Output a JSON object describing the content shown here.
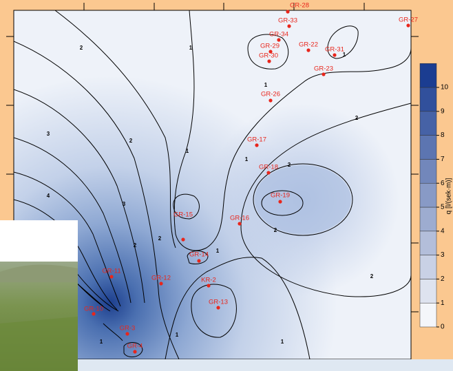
{
  "map": {
    "wells": [
      "GR-28",
      "GR-33",
      "GR-34",
      "GR-29",
      "GR-30",
      "GR-22",
      "GR-31",
      "GR-27",
      "GR-23",
      "GR-26",
      "GR-17",
      "GR-18",
      "GR-19",
      "GR-15",
      "GR-16",
      "GR-14",
      "GR-11",
      "GR-12",
      "KR-2",
      "GR-13",
      "GR-3",
      "GR-4",
      "GR-10"
    ],
    "contour_labels": [
      2,
      1,
      1,
      2,
      1,
      2,
      3,
      2,
      1,
      4,
      3,
      2,
      1,
      2,
      1,
      2,
      2,
      1,
      1,
      1
    ],
    "colorbar": {
      "ticks": [
        0,
        1,
        2,
        3,
        4,
        5,
        6,
        7,
        8,
        9,
        10
      ],
      "label": "q [l/(sek·m)]"
    }
  }
}
